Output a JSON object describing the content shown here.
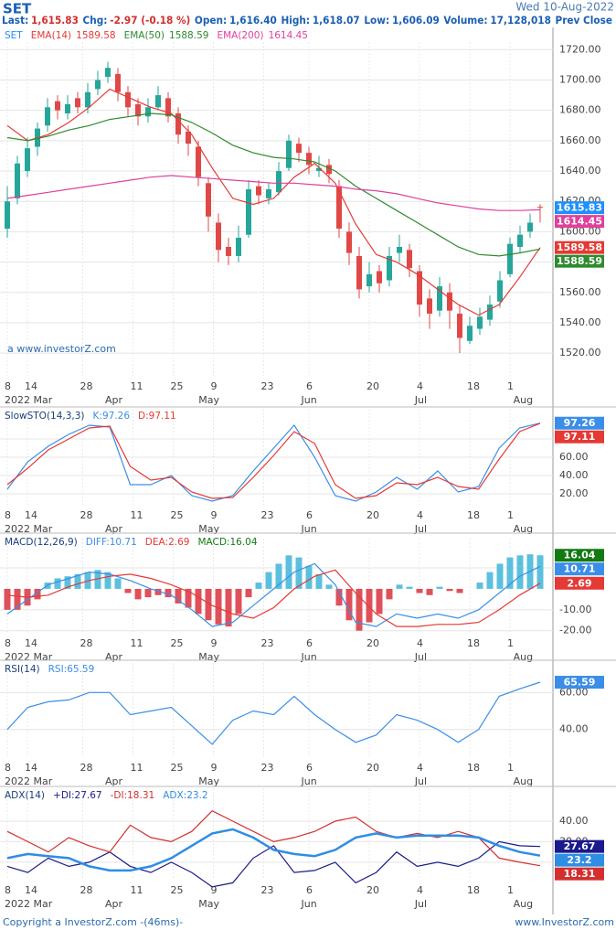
{
  "header": {
    "symbol": "SET",
    "date": "Wed 10-Aug-2022",
    "stats": [
      {
        "label": "Last:",
        "value": "1,615.83"
      },
      {
        "label": "Chg:",
        "value": "-2.97 (-0.18 %)"
      },
      {
        "label": "Open:",
        "value": "1,616.40"
      },
      {
        "label": "High:",
        "value": "1,618.07"
      },
      {
        "label": "Low:",
        "value": "1,606.09"
      },
      {
        "label": "Volume:",
        "value": "17,128,018"
      },
      {
        "label": "Prev Close"
      }
    ]
  },
  "watermark": "a www.investorZ.com",
  "footer": {
    "left": "Copyright a InvestorZ.com -(46ms)-",
    "right": "www.InvestorZ.com"
  },
  "x_axis": {
    "xticks": [
      {
        "value": 0,
        "label": "8"
      },
      {
        "value": 2,
        "label": "14"
      },
      {
        "value": 7.5,
        "label": "28"
      },
      {
        "value": 12.5,
        "label": "11"
      },
      {
        "value": 16.5,
        "label": "25"
      },
      {
        "value": 20.5,
        "label": "9"
      },
      {
        "value": 25.5,
        "label": "23"
      },
      {
        "value": 30,
        "label": "6"
      },
      {
        "value": 36,
        "label": "20"
      },
      {
        "value": 41,
        "label": "4"
      },
      {
        "value": 46,
        "label": "18"
      },
      {
        "value": 50,
        "label": "1"
      }
    ],
    "month_ticks": [
      {
        "value": 0,
        "label": "2022 Mar"
      },
      {
        "value": 10,
        "label": "Apr"
      },
      {
        "value": 19.3,
        "label": "May"
      },
      {
        "value": 29.5,
        "label": "Jun"
      },
      {
        "value": 40.8,
        "label": "Jul"
      },
      {
        "value": 50.6,
        "label": "Aug"
      }
    ]
  },
  "chart_data": [
    {
      "type": "candlestick",
      "grid": true,
      "ylim": [
        1505,
        1725
      ],
      "yticks": [
        {
          "value": 1520,
          "label": "1520.00"
        },
        {
          "value": 1540,
          "label": "1540.00"
        },
        {
          "value": 1560,
          "label": "1560.00"
        },
        {
          "value": 1580,
          "label": "1580.00"
        },
        {
          "value": 1600,
          "label": "1600.00"
        },
        {
          "value": 1620,
          "label": "1620.00"
        },
        {
          "value": 1640,
          "label": "1640.00"
        },
        {
          "value": 1660,
          "label": "1660.00"
        },
        {
          "value": 1680,
          "label": "1680.00"
        },
        {
          "value": 1700,
          "label": "1700.00"
        },
        {
          "value": 1720,
          "label": "1720.00"
        }
      ],
      "series": [
        {
          "name": "SET",
          "type": "candle",
          "color": "#1e90ff",
          "up_color": "#26a69a",
          "down_color": "#e04848",
          "values": [
            [
              1602,
              1630,
              1596,
              1620
            ],
            [
              1622,
              1650,
              1618,
              1645
            ],
            [
              1640,
              1662,
              1636,
              1655
            ],
            [
              1656,
              1672,
              1650,
              1668
            ],
            [
              1670,
              1688,
              1666,
              1682
            ],
            [
              1686,
              1690,
              1674,
              1680
            ],
            [
              1678,
              1690,
              1674,
              1684
            ],
            [
              1688,
              1692,
              1678,
              1682
            ],
            [
              1682,
              1698,
              1678,
              1692
            ],
            [
              1694,
              1706,
              1690,
              1700
            ],
            [
              1702,
              1712,
              1698,
              1708
            ],
            [
              1704,
              1708,
              1686,
              1692
            ],
            [
              1692,
              1696,
              1676,
              1682
            ],
            [
              1684,
              1688,
              1670,
              1676
            ],
            [
              1676,
              1688,
              1672,
              1682
            ],
            [
              1682,
              1696,
              1680,
              1690
            ],
            [
              1688,
              1692,
              1672,
              1676
            ],
            [
              1678,
              1682,
              1658,
              1664
            ],
            [
              1666,
              1670,
              1650,
              1658
            ],
            [
              1656,
              1660,
              1630,
              1636
            ],
            [
              1632,
              1636,
              1600,
              1610
            ],
            [
              1606,
              1612,
              1580,
              1588
            ],
            [
              1590,
              1596,
              1578,
              1584
            ],
            [
              1584,
              1604,
              1580,
              1596
            ],
            [
              1598,
              1634,
              1596,
              1628
            ],
            [
              1630,
              1634,
              1618,
              1624
            ],
            [
              1622,
              1632,
              1618,
              1628
            ],
            [
              1626,
              1646,
              1624,
              1640
            ],
            [
              1642,
              1664,
              1640,
              1660
            ],
            [
              1658,
              1662,
              1646,
              1652
            ],
            [
              1652,
              1656,
              1638,
              1644
            ],
            [
              1640,
              1650,
              1636,
              1642
            ],
            [
              1644,
              1648,
              1632,
              1638
            ],
            [
              1630,
              1634,
              1596,
              1602
            ],
            [
              1600,
              1606,
              1578,
              1586
            ],
            [
              1584,
              1590,
              1556,
              1562
            ],
            [
              1564,
              1580,
              1560,
              1572
            ],
            [
              1574,
              1578,
              1560,
              1566
            ],
            [
              1568,
              1590,
              1564,
              1584
            ],
            [
              1586,
              1598,
              1580,
              1590
            ],
            [
              1588,
              1592,
              1570,
              1576
            ],
            [
              1574,
              1578,
              1544,
              1552
            ],
            [
              1556,
              1562,
              1536,
              1546
            ],
            [
              1548,
              1570,
              1544,
              1564
            ],
            [
              1560,
              1566,
              1536,
              1548
            ],
            [
              1546,
              1552,
              1520,
              1530
            ],
            [
              1528,
              1544,
              1526,
              1538
            ],
            [
              1536,
              1550,
              1532,
              1544
            ],
            [
              1542,
              1558,
              1538,
              1552
            ],
            [
              1554,
              1574,
              1550,
              1568
            ],
            [
              1572,
              1596,
              1570,
              1592
            ],
            [
              1590,
              1604,
              1586,
              1598
            ],
            [
              1600,
              1612,
              1596,
              1606
            ],
            [
              1616.4,
              1618.07,
              1606.09,
              1615.83
            ]
          ]
        },
        {
          "name": "EMA(14)",
          "type": "line",
          "color": "#e53935",
          "values": [
            1670,
            1660,
            1664,
            1672,
            1682,
            1694,
            1688,
            1682,
            1678,
            1664,
            1642,
            1622,
            1618,
            1622,
            1636,
            1645,
            1632,
            1605,
            1585,
            1580,
            1572,
            1562,
            1552,
            1545,
            1552,
            1570,
            1589.58
          ]
        },
        {
          "name": "EMA(50)",
          "type": "line",
          "color": "#2e8b2e",
          "values": [
            1662,
            1660,
            1663,
            1667,
            1670,
            1674,
            1676,
            1678,
            1677,
            1672,
            1665,
            1657,
            1652,
            1649,
            1648,
            1646,
            1640,
            1630,
            1622,
            1614,
            1606,
            1598,
            1590,
            1585,
            1584,
            1586,
            1588.59
          ]
        },
        {
          "name": "EMA(200)",
          "type": "line",
          "color": "#e0409a",
          "values": [
            1622,
            1624,
            1626,
            1628,
            1630,
            1632,
            1634,
            1636,
            1637,
            1636,
            1635,
            1634,
            1633,
            1632,
            1632,
            1631,
            1630,
            1628,
            1627,
            1625,
            1622,
            1619,
            1617,
            1615,
            1614,
            1614,
            1614.45
          ]
        }
      ]
    },
    {
      "type": "line",
      "title": "SlowSTO(14,3,3)",
      "grid": true,
      "ylim": [
        8,
        113
      ],
      "yticks": [
        {
          "value": 20,
          "label": "20.00"
        },
        {
          "value": 40,
          "label": "40.00"
        },
        {
          "value": 60,
          "label": "60.00"
        },
        {
          "value": 80,
          "label": "80.00"
        }
      ],
      "series": [
        {
          "name": "K:",
          "type": "line",
          "color": "#3b8ee8",
          "values": [
            25,
            55,
            72,
            85,
            95,
            93,
            30,
            30,
            40,
            18,
            12,
            18,
            45,
            70,
            95,
            60,
            18,
            12,
            22,
            38,
            25,
            45,
            22,
            28,
            70,
            92,
            97.26
          ]
        },
        {
          "name": "D:",
          "type": "line",
          "color": "#e53935",
          "values": [
            30,
            48,
            68,
            80,
            92,
            94,
            50,
            35,
            38,
            22,
            15,
            16,
            38,
            62,
            88,
            75,
            30,
            15,
            18,
            32,
            30,
            38,
            28,
            25,
            58,
            88,
            97.11
          ]
        }
      ]
    },
    {
      "type": "macd",
      "title": "MACD(12,26,9)",
      "grid": true,
      "ylim": [
        -21,
        24
      ],
      "yticks": [
        {
          "value": -20,
          "label": "-20.00"
        },
        {
          "value": -10,
          "label": "-10.00"
        },
        {
          "value": 10,
          "label": "10.00"
        }
      ],
      "series": [
        {
          "name": "DIFF:",
          "type": "line",
          "color": "#3b8ee8",
          "values": [
            -12,
            -5,
            2,
            5,
            8,
            7,
            4,
            0,
            -3,
            -10,
            -18,
            -16,
            -8,
            0,
            8,
            12,
            2,
            -16,
            -18,
            -12,
            -14,
            -12,
            -14,
            -10,
            -2,
            6,
            10.71
          ]
        },
        {
          "name": "DEA:",
          "type": "line",
          "color": "#e53935",
          "values": [
            -3,
            -4,
            -3,
            1,
            4,
            6,
            7,
            5,
            2,
            -2,
            -8,
            -12,
            -14,
            -9,
            0,
            6,
            9,
            -2,
            -12,
            -18,
            -18,
            -17,
            -17,
            -16,
            -10,
            -3,
            2.69
          ]
        },
        {
          "name": "MACD:",
          "type": "bar",
          "color": "#137a13",
          "up_color": "#5bc0de",
          "down_color": "#e0505a",
          "values": [
            -10,
            -10,
            -8,
            -5,
            3,
            5,
            6,
            7,
            8,
            9,
            8,
            5,
            -2,
            -5,
            -4,
            -3,
            -4,
            -7,
            -9,
            -12,
            -15,
            -17,
            -18,
            -12,
            -4,
            3,
            8,
            12,
            16,
            15,
            11,
            7,
            2,
            -8,
            -15,
            -20,
            -16,
            -12,
            -5,
            2,
            1,
            -2,
            -3,
            1,
            -1,
            -2,
            0,
            3,
            8,
            12,
            15,
            16,
            16.5,
            16.04
          ]
        }
      ]
    },
    {
      "type": "line",
      "title": "RSI(14)",
      "grid": true,
      "ylim": [
        25,
        76
      ],
      "yticks": [
        {
          "value": 40,
          "label": "40.00"
        },
        {
          "value": 60,
          "label": "60.00"
        }
      ],
      "series": [
        {
          "name": "RSI:",
          "type": "line",
          "color": "#3b8ee8",
          "values": [
            40,
            52,
            55,
            56,
            60,
            60,
            48,
            50,
            52,
            42,
            32,
            45,
            50,
            48,
            58,
            48,
            40,
            33,
            37,
            48,
            45,
            40,
            33,
            40,
            58,
            62,
            65.59
          ]
        }
      ]
    },
    {
      "type": "line",
      "title": "ADX(14)",
      "grid": true,
      "ylim": [
        11.5,
        56
      ],
      "yticks": [
        {
          "value": 20,
          "label": "20.00"
        },
        {
          "value": 30,
          "label": "30.00"
        },
        {
          "value": 40,
          "label": "40.00"
        }
      ],
      "series": [
        {
          "name": "+DI:",
          "type": "line",
          "color": "#1a1a8c",
          "values": [
            18,
            15,
            22,
            18,
            20,
            25,
            18,
            15,
            20,
            15,
            8,
            10,
            22,
            28,
            15,
            16,
            20,
            10,
            15,
            25,
            18,
            20,
            18,
            22,
            30,
            28,
            27.67
          ]
        },
        {
          "name": "-DI:",
          "type": "line",
          "color": "#d32f2f",
          "values": [
            35,
            30,
            25,
            32,
            28,
            25,
            38,
            32,
            30,
            35,
            45,
            40,
            35,
            30,
            32,
            35,
            40,
            42,
            35,
            32,
            34,
            32,
            35,
            32,
            22,
            20,
            18.31
          ]
        },
        {
          "name": "ADX:",
          "type": "line",
          "color": "#2f8de4",
          "line_width": 2.5,
          "values": [
            22,
            24,
            23,
            22,
            18,
            16,
            16,
            18,
            22,
            28,
            34,
            36,
            32,
            26,
            24,
            23,
            26,
            32,
            34,
            32,
            33,
            33,
            33,
            32,
            28,
            25,
            23.2
          ]
        }
      ]
    }
  ]
}
